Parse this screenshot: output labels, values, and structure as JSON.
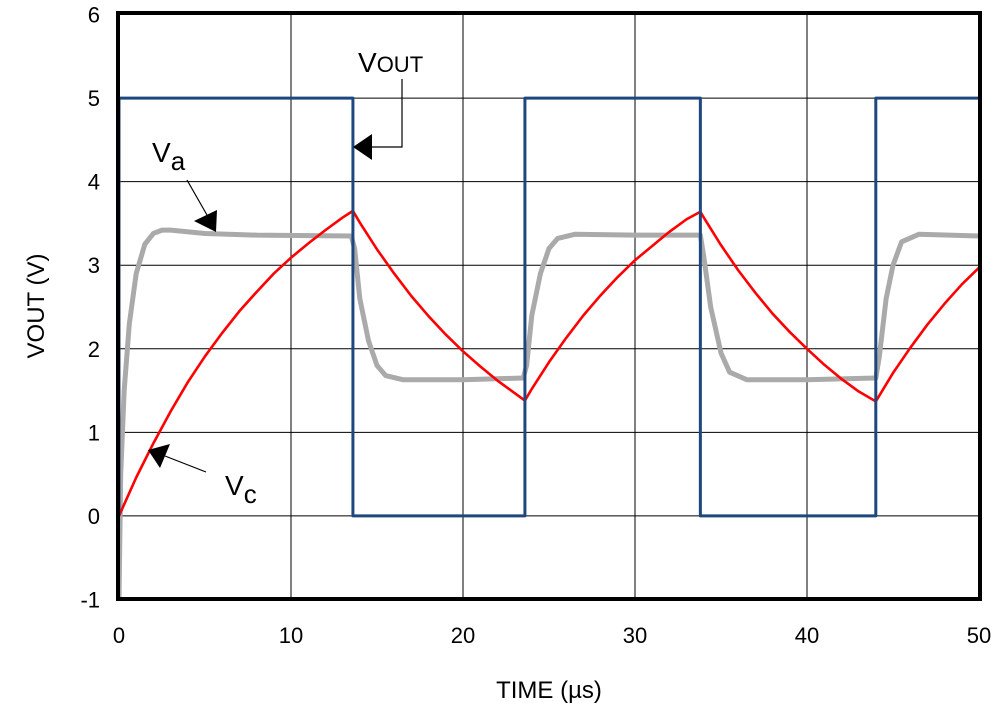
{
  "chart_data": {
    "type": "line",
    "title": "",
    "xlabel": "TIME (µs)",
    "ylabel": "VOUT (V)",
    "xlim": [
      0,
      50
    ],
    "ylim": [
      -1,
      6
    ],
    "x_ticks": [
      0,
      10,
      20,
      30,
      40,
      50
    ],
    "y_ticks": [
      -1,
      0,
      1,
      2,
      3,
      4,
      5,
      6
    ],
    "grid": true,
    "legend": "none",
    "annotations": {
      "vout": {
        "main": "V",
        "sub": "OUT"
      },
      "va": {
        "main": "V",
        "sub": "a"
      },
      "vc": {
        "main": "V",
        "sub": "c"
      }
    },
    "series": [
      {
        "key": "vout",
        "color": "#1f477f",
        "points": [
          [
            0,
            0
          ],
          [
            0,
            5
          ],
          [
            13.6,
            5
          ],
          [
            13.6,
            0
          ],
          [
            23.6,
            0
          ],
          [
            23.6,
            5
          ],
          [
            33.8,
            5
          ],
          [
            33.8,
            0
          ],
          [
            44,
            0
          ],
          [
            44,
            5
          ],
          [
            50,
            5
          ]
        ]
      },
      {
        "key": "va",
        "color": "#aaaaaa",
        "points": [
          [
            0,
            -1
          ],
          [
            0.1,
            0.5
          ],
          [
            0.3,
            1.5
          ],
          [
            0.6,
            2.3
          ],
          [
            1,
            2.9
          ],
          [
            1.5,
            3.25
          ],
          [
            2,
            3.38
          ],
          [
            2.5,
            3.42
          ],
          [
            3,
            3.42
          ],
          [
            5,
            3.38
          ],
          [
            8,
            3.36
          ],
          [
            13.5,
            3.35
          ],
          [
            13.7,
            3.2
          ],
          [
            14,
            2.6
          ],
          [
            14.5,
            2.1
          ],
          [
            15,
            1.8
          ],
          [
            15.5,
            1.68
          ],
          [
            16.5,
            1.63
          ],
          [
            20,
            1.63
          ],
          [
            23.5,
            1.65
          ],
          [
            23.7,
            1.8
          ],
          [
            24,
            2.4
          ],
          [
            24.5,
            2.9
          ],
          [
            25,
            3.2
          ],
          [
            25.5,
            3.32
          ],
          [
            26.5,
            3.37
          ],
          [
            30,
            3.36
          ],
          [
            33.8,
            3.36
          ],
          [
            34,
            3.1
          ],
          [
            34.4,
            2.5
          ],
          [
            35,
            1.95
          ],
          [
            35.5,
            1.72
          ],
          [
            36.5,
            1.63
          ],
          [
            40,
            1.63
          ],
          [
            44,
            1.65
          ],
          [
            44.2,
            1.9
          ],
          [
            44.6,
            2.6
          ],
          [
            45,
            3.0
          ],
          [
            45.5,
            3.28
          ],
          [
            46.5,
            3.37
          ],
          [
            50,
            3.35
          ]
        ]
      },
      {
        "key": "vc",
        "color": "#ff0000",
        "points": [
          [
            0,
            0
          ],
          [
            1,
            0.46
          ],
          [
            2,
            0.87
          ],
          [
            3,
            1.25
          ],
          [
            4,
            1.6
          ],
          [
            5,
            1.91
          ],
          [
            6,
            2.19
          ],
          [
            7,
            2.45
          ],
          [
            8,
            2.68
          ],
          [
            9,
            2.9
          ],
          [
            10,
            3.09
          ],
          [
            11,
            3.26
          ],
          [
            12,
            3.42
          ],
          [
            13,
            3.57
          ],
          [
            13.6,
            3.65
          ],
          [
            14,
            3.51
          ],
          [
            15,
            3.19
          ],
          [
            16,
            2.9
          ],
          [
            17,
            2.63
          ],
          [
            18,
            2.39
          ],
          [
            19,
            2.17
          ],
          [
            20,
            1.97
          ],
          [
            21,
            1.79
          ],
          [
            22,
            1.62
          ],
          [
            23,
            1.47
          ],
          [
            23.6,
            1.38
          ],
          [
            24,
            1.52
          ],
          [
            25,
            1.84
          ],
          [
            26,
            2.13
          ],
          [
            27,
            2.4
          ],
          [
            28,
            2.64
          ],
          [
            29,
            2.86
          ],
          [
            30,
            3.06
          ],
          [
            31,
            3.23
          ],
          [
            32,
            3.4
          ],
          [
            33,
            3.55
          ],
          [
            33.8,
            3.64
          ],
          [
            34,
            3.57
          ],
          [
            35,
            3.24
          ],
          [
            36,
            2.94
          ],
          [
            37,
            2.67
          ],
          [
            38,
            2.42
          ],
          [
            39,
            2.2
          ],
          [
            40,
            2.0
          ],
          [
            41,
            1.81
          ],
          [
            42,
            1.64
          ],
          [
            43,
            1.49
          ],
          [
            44,
            1.37
          ],
          [
            45,
            1.71
          ],
          [
            46,
            2.01
          ],
          [
            47,
            2.29
          ],
          [
            48,
            2.54
          ],
          [
            49,
            2.77
          ],
          [
            50,
            2.97
          ]
        ]
      }
    ]
  }
}
